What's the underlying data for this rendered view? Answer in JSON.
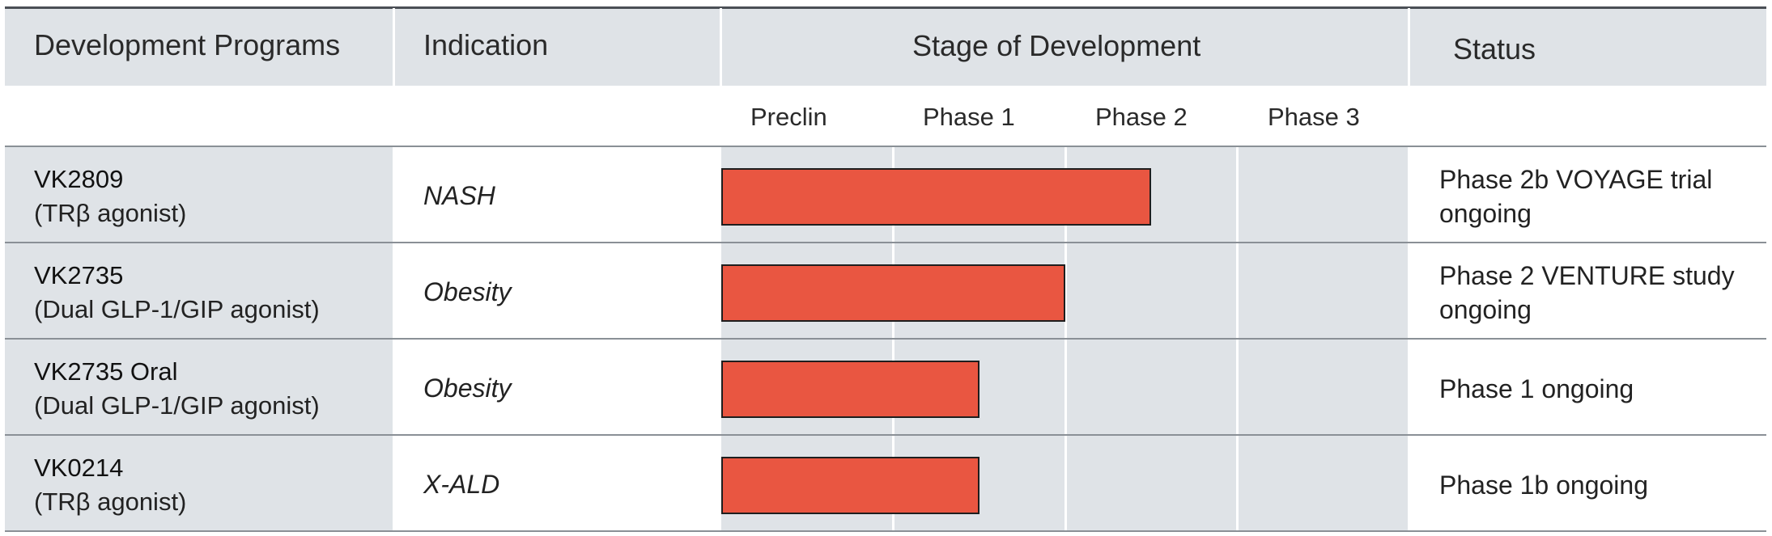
{
  "headers": {
    "programs": "Development Programs",
    "indication": "Indication",
    "stage": "Stage of Development",
    "status": "Status"
  },
  "chart_data": {
    "type": "bar",
    "orientation": "horizontal",
    "stages": [
      "Preclin",
      "Phase 1",
      "Phase 2",
      "Phase 3"
    ],
    "xlim": [
      0,
      4
    ],
    "rows": [
      {
        "program": "VK2809",
        "description": "(TRβ agonist)",
        "indication": "NASH",
        "progress": 2.5,
        "status": "Phase 2b VOYAGE trial ongoing"
      },
      {
        "program": "VK2735",
        "description": "(Dual GLP-1/GIP agonist)",
        "indication": "Obesity",
        "progress": 2.0,
        "status": "Phase 2 VENTURE study ongoing"
      },
      {
        "program": "VK2735 Oral",
        "description": "(Dual GLP-1/GIP agonist)",
        "indication": "Obesity",
        "progress": 1.5,
        "status": "Phase 1 ongoing"
      },
      {
        "program": "VK0214",
        "description": "(TRβ agonist)",
        "indication": "X-ALD",
        "progress": 1.5,
        "status": "Phase 1b ongoing"
      }
    ],
    "colors": {
      "bar": "#e95641",
      "bar_border": "#1e1e1e",
      "header_band": "#dfe3e7",
      "column_shade": "#dfe3e7"
    }
  }
}
